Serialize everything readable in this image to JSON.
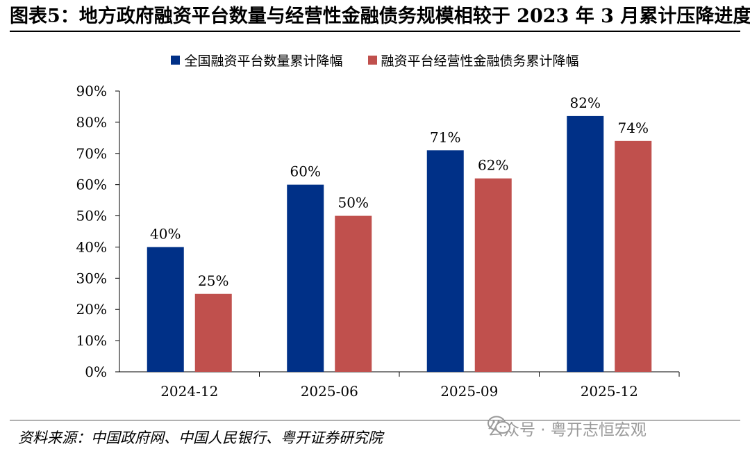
{
  "figure": {
    "title": "图表5：地方政府融资平台数量与经营性金融债务规模相较于 2023 年 3 月累计压降进度",
    "source": "资料来源：中国政府网、中国人民银行、粤开证券研究院",
    "watermark": "公众号 · 粤开志恒宏观",
    "watermark_icon": "wechat-icon"
  },
  "chart_data": {
    "type": "bar",
    "categories": [
      "2024-12",
      "2025-06",
      "2025-09",
      "2025-12"
    ],
    "series": [
      {
        "name": "全国融资平台数量累计降幅",
        "values": [
          40,
          60,
          71,
          82
        ],
        "labels": [
          "40%",
          "60%",
          "71%",
          "82%"
        ],
        "color": "#003087"
      },
      {
        "name": "融资平台经营性金融债务累计降幅",
        "values": [
          25,
          50,
          62,
          74
        ],
        "labels": [
          "25%",
          "50%",
          "62%",
          "74%"
        ],
        "color": "#c0504d"
      }
    ],
    "ylim": [
      0,
      90
    ],
    "yticks": [
      "0%",
      "10%",
      "20%",
      "30%",
      "40%",
      "50%",
      "60%",
      "70%",
      "80%",
      "90%"
    ],
    "grid": false,
    "legend_position": "top-center",
    "xlabel": "",
    "ylabel": ""
  }
}
